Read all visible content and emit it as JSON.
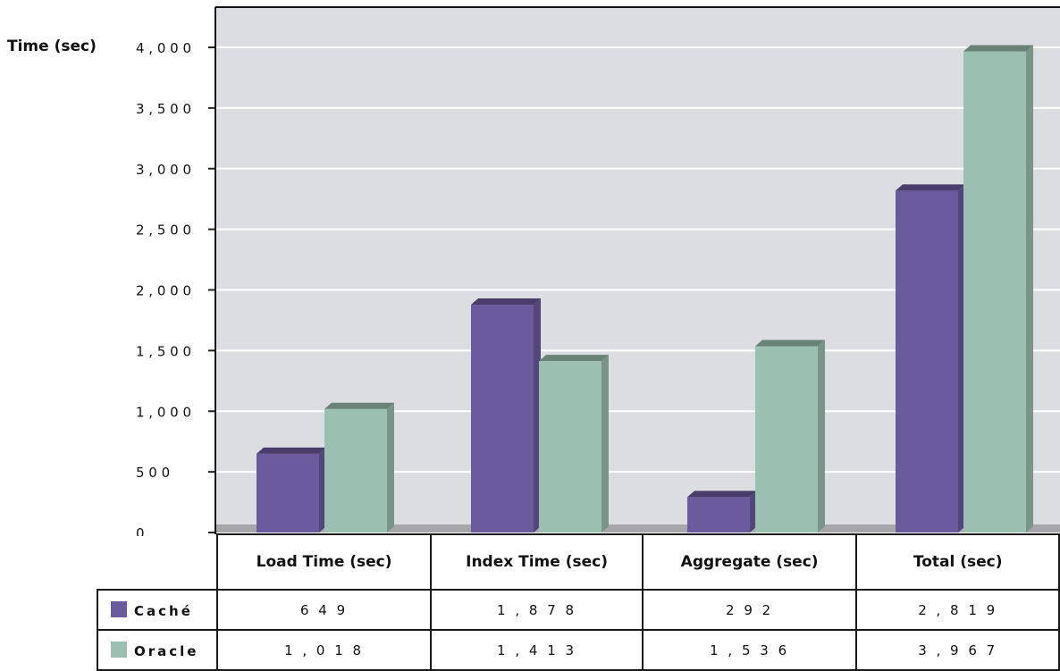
{
  "chart_data": {
    "type": "bar",
    "ylabel": "Time (sec)",
    "ylim": [
      0,
      4000
    ],
    "yticks": [
      "0",
      "5 0 0",
      "1 , 0 0 0",
      "1 , 5 0 0",
      "2 , 0 0 0",
      "2 , 5 0 0",
      "3 , 0 0 0",
      "3 , 5 0 0",
      "4 , 0 0 0"
    ],
    "grid": true,
    "categories": [
      "Load Time (sec)",
      "Index Time (sec)",
      "Aggregate (sec)",
      "Total (sec)"
    ],
    "series": [
      {
        "name": "Caché",
        "color": "#6a5a9e",
        "values": [
          649,
          1878,
          292,
          2819
        ],
        "labels": [
          "6 4 9",
          "1 , 8 7 8",
          "2 9 2",
          "2 , 8 1 9"
        ]
      },
      {
        "name": "Oracle",
        "color": "#9bbfb0",
        "values": [
          1018,
          1413,
          1536,
          3967
        ],
        "labels": [
          "1 , 0 1 8",
          "1 , 4 1 3",
          "1 , 5 3 6",
          "3 , 9 6 7"
        ]
      }
    ],
    "legend": "data-table-below"
  }
}
